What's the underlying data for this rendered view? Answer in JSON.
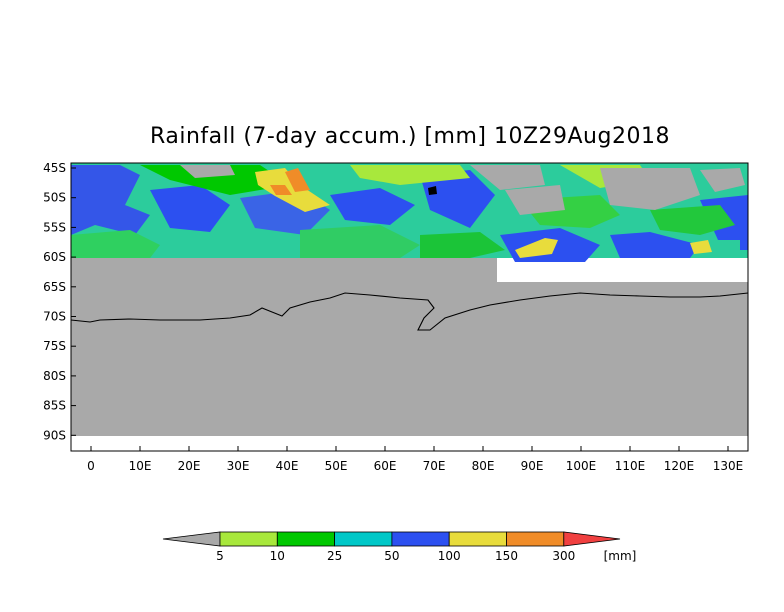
{
  "title": "Rainfall (7-day accum.) [mm] 10Z29Aug2018",
  "map": {
    "lat_labels": [
      "45S",
      "50S",
      "55S",
      "60S",
      "65S",
      "70S",
      "75S",
      "80S",
      "85S",
      "90S"
    ],
    "lon_labels": [
      "0",
      "10E",
      "20E",
      "30E",
      "40E",
      "50E",
      "60E",
      "70E",
      "80E",
      "90E",
      "100E",
      "110E",
      "120E",
      "130E"
    ],
    "no_data_color": "#a9a9a9",
    "coastline_color": "#000000"
  },
  "legend": {
    "unit": "[mm]",
    "ticks": [
      "5",
      "10",
      "25",
      "50",
      "100",
      "150",
      "300"
    ],
    "colors": [
      "#a9a9a9",
      "#a8e83c",
      "#00c800",
      "#00c8c8",
      "#2c50f0",
      "#e8dc3c",
      "#f08c28",
      "#f04040"
    ]
  }
}
